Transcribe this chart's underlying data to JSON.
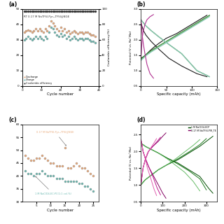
{
  "panel_a": {
    "title": "(a)",
    "xlabel": "Cycle number",
    "ylabel_right": "Coulombic efficiency(%)",
    "annotation": "RT 0.17 M NaTFSI-Pyr₁₄TFSI@NGE",
    "legend": [
      "Discharge",
      "Charge",
      "Coulombic efficiency"
    ],
    "colors_discharge": "#e8a878",
    "colors_charge": "#6ab8b0",
    "colors_ce": "#303030",
    "discharge_x": [
      1,
      2,
      3,
      4,
      5,
      6,
      7,
      8,
      9,
      10,
      11,
      12,
      13,
      14,
      15,
      16,
      17,
      18,
      19,
      20,
      21,
      22,
      23,
      24,
      25,
      26,
      27,
      28,
      29,
      30,
      31,
      32,
      33,
      34,
      35,
      36,
      37,
      38
    ],
    "discharge_y": [
      35,
      36,
      36.5,
      36,
      35,
      36,
      37,
      36,
      37,
      36,
      35,
      37,
      36,
      39,
      42,
      41,
      39,
      37,
      36,
      38,
      36,
      37,
      35,
      36,
      34,
      35,
      36,
      35,
      34,
      35,
      35,
      34,
      35,
      35,
      34,
      33,
      33,
      32
    ],
    "charge_x": [
      1,
      2,
      3,
      4,
      5,
      6,
      7,
      8,
      9,
      10,
      11,
      12,
      13,
      14,
      15,
      16,
      17,
      18,
      19,
      20,
      21,
      22,
      23,
      24,
      25,
      26,
      27,
      28,
      29,
      30,
      31,
      32,
      33,
      34,
      35,
      36,
      37,
      38
    ],
    "charge_y": [
      30,
      31,
      32,
      31,
      30,
      31,
      32,
      31,
      32,
      31,
      30,
      32,
      31,
      35,
      38,
      37,
      35,
      33,
      32,
      34,
      32,
      33,
      31,
      32,
      30,
      31,
      32,
      31,
      30,
      31,
      31,
      30,
      31,
      31,
      30,
      29,
      29,
      28
    ],
    "ce_x": [
      1,
      2,
      3,
      4,
      5,
      6,
      7,
      8,
      9,
      10,
      11,
      12,
      13,
      14,
      15,
      16,
      17,
      18,
      19,
      20,
      21,
      22,
      23,
      24,
      25,
      26,
      27,
      28,
      29,
      30,
      31,
      32,
      33,
      34,
      35,
      36,
      37,
      38
    ],
    "ce_y": [
      97,
      97,
      97,
      97,
      97,
      97,
      97,
      97,
      97,
      97,
      97,
      97,
      97,
      97,
      97,
      97,
      97,
      97,
      97,
      97,
      97,
      97,
      97,
      97,
      97,
      97,
      97,
      97,
      97,
      97,
      97,
      97,
      97,
      97,
      97,
      97,
      97,
      97
    ],
    "ylim_left": [
      0,
      50
    ],
    "ylim_right": [
      0,
      100
    ],
    "xlim": [
      0,
      40
    ],
    "yticks_left": [
      0,
      10,
      20,
      30,
      40,
      50
    ],
    "yticks_right": [
      0,
      20,
      40,
      60,
      80,
      100
    ],
    "xticks": [
      0,
      10,
      20,
      30,
      40
    ]
  },
  "panel_b": {
    "title": "(b)",
    "xlabel": "Specific capacity (mAh)",
    "ylabel": "Potential (V vs. Na⁺/Na)",
    "ylim": [
      0.5,
      3.0
    ],
    "xlim": [
      0,
      150
    ],
    "yticks": [
      0.5,
      1.0,
      1.5,
      2.0,
      2.5,
      3.0
    ],
    "xticks": [
      0,
      50,
      100,
      150
    ],
    "curves": [
      {
        "color": "#1a1a1a",
        "charge_x": [
          0,
          2,
          5,
          8,
          12,
          18,
          25,
          35,
          50,
          70,
          90,
          110,
          130
        ],
        "charge_y": [
          1.4,
          1.42,
          1.45,
          1.48,
          1.55,
          1.65,
          1.75,
          1.88,
          2.05,
          2.2,
          2.4,
          2.6,
          2.8
        ],
        "discharge_x": [
          0,
          2,
          5,
          10,
          20,
          35,
          55,
          80,
          110,
          130
        ],
        "discharge_y": [
          2.55,
          2.45,
          2.3,
          2.15,
          1.95,
          1.7,
          1.4,
          1.15,
          0.9,
          0.8
        ]
      },
      {
        "color": "#2d7a2d",
        "charge_x": [
          0,
          5,
          10,
          20,
          35,
          55,
          80,
          110,
          135
        ],
        "charge_y": [
          1.38,
          1.45,
          1.52,
          1.65,
          1.8,
          2.0,
          2.25,
          2.55,
          2.8
        ],
        "discharge_x": [
          0,
          5,
          10,
          20,
          35,
          55,
          80,
          110,
          135
        ],
        "discharge_y": [
          2.65,
          2.55,
          2.45,
          2.3,
          2.1,
          1.85,
          1.55,
          1.0,
          0.8
        ]
      },
      {
        "color": "#6ab86a",
        "charge_x": [
          0,
          5,
          10,
          20,
          35,
          55,
          80,
          110,
          135
        ],
        "charge_y": [
          1.35,
          1.42,
          1.5,
          1.62,
          1.78,
          1.98,
          2.22,
          2.52,
          2.78
        ],
        "discharge_x": [
          0,
          5,
          10,
          20,
          35,
          55,
          80,
          110,
          135
        ],
        "discharge_y": [
          2.65,
          2.55,
          2.45,
          2.3,
          2.1,
          1.85,
          1.55,
          1.0,
          0.8
        ]
      },
      {
        "color": "#90c8c0",
        "charge_x": [
          0,
          5,
          10,
          20,
          35,
          55,
          80,
          110,
          135
        ],
        "charge_y": [
          1.32,
          1.4,
          1.48,
          1.6,
          1.75,
          1.95,
          2.2,
          2.5,
          2.75
        ],
        "discharge_x": [
          0,
          5,
          10,
          20,
          35,
          55,
          80,
          110,
          135
        ],
        "discharge_y": [
          2.65,
          2.55,
          2.45,
          2.3,
          2.1,
          1.85,
          1.55,
          1.0,
          0.8
        ]
      },
      {
        "color": "#b03090",
        "charge_x": [
          0,
          1,
          2,
          3,
          5,
          8,
          12,
          18,
          25
        ],
        "charge_y": [
          1.4,
          1.6,
          1.9,
          2.1,
          2.3,
          2.5,
          2.65,
          2.75,
          2.82
        ],
        "discharge_x": [
          0,
          1,
          2,
          3,
          5,
          8,
          12,
          18,
          25
        ],
        "discharge_y": [
          2.65,
          2.5,
          2.3,
          2.1,
          1.85,
          1.55,
          1.2,
          0.9,
          0.75
        ]
      }
    ]
  },
  "panel_c": {
    "title": "(c)",
    "xlabel": "Cycle number",
    "annotation1": "0.17 M NaTFSI-Pyr₁₄TFSI@NGE",
    "annotation2": "1 M NaClO4-EC:PC(1:1 vol.%)",
    "color1": "#e8a878",
    "color2": "#6ab8b0",
    "series1_x": [
      1,
      2,
      3,
      4,
      5,
      6,
      7,
      8,
      9,
      10,
      11,
      12,
      13,
      14,
      15,
      16,
      17,
      18,
      19,
      20,
      21,
      22,
      23,
      24,
      25
    ],
    "series1_y": [
      48,
      47,
      46,
      46,
      47,
      47,
      48,
      47,
      46,
      45,
      45,
      44,
      44,
      44,
      51,
      43,
      43,
      44,
      45,
      44,
      43,
      43,
      42,
      41,
      40
    ],
    "series2_x": [
      1,
      2,
      3,
      4,
      5,
      6,
      7,
      8,
      9,
      10,
      11,
      12,
      13,
      14,
      15,
      16,
      17,
      18,
      19,
      20,
      21,
      22,
      23,
      24,
      25
    ],
    "series2_y": [
      42,
      41,
      41,
      40,
      41,
      41,
      42,
      41,
      40,
      40,
      40,
      39,
      39,
      39,
      38,
      38,
      38,
      38,
      38,
      37,
      37,
      36,
      36,
      35,
      34
    ],
    "ylim": [
      30,
      60
    ],
    "xlim": [
      0,
      27
    ],
    "xticks": [
      5,
      10,
      15,
      20,
      25
    ]
  },
  "panel_d": {
    "title": "(d)",
    "xlabel": "Specific capacity (mAh)",
    "ylabel": "Potential (V vs. Na⁺/Na)",
    "ylim": [
      0.5,
      2.8
    ],
    "xlim": [
      0,
      350
    ],
    "yticks": [
      0.5,
      1.0,
      1.5,
      2.0,
      2.5
    ],
    "xticks": [
      0,
      100,
      200,
      300
    ],
    "legend_label_green": "1 M NaClO4-ECP",
    "legend_label_pink": "0.17 M NaTFSI-PIR_TE",
    "green_shades": [
      "#004d00",
      "#1a7a1a",
      "#66bb66"
    ],
    "pink_shades": [
      "#800060",
      "#c01890",
      "#e060b0"
    ],
    "curves_green": [
      {
        "charge_x": [
          0,
          20,
          50,
          80,
          120,
          170,
          220,
          270,
          310,
          330
        ],
        "charge_y": [
          1.0,
          1.15,
          1.3,
          1.45,
          1.6,
          1.75,
          1.95,
          2.15,
          2.35,
          2.45
        ],
        "discharge_x": [
          0,
          20,
          50,
          80,
          120,
          170,
          220,
          270,
          310,
          330
        ],
        "discharge_y": [
          2.25,
          2.15,
          2.05,
          1.95,
          1.8,
          1.65,
          1.45,
          1.25,
          0.9,
          0.75
        ]
      },
      {
        "charge_x": [
          0,
          20,
          50,
          80,
          120,
          170,
          220,
          270,
          300
        ],
        "charge_y": [
          1.0,
          1.15,
          1.3,
          1.45,
          1.6,
          1.78,
          1.98,
          2.2,
          2.38
        ],
        "discharge_x": [
          0,
          20,
          50,
          80,
          120,
          170,
          220,
          270,
          300
        ],
        "discharge_y": [
          2.25,
          2.15,
          2.05,
          1.95,
          1.8,
          1.62,
          1.42,
          1.18,
          0.85
        ]
      },
      {
        "charge_x": [
          0,
          20,
          50,
          80,
          120,
          160,
          200,
          240,
          270
        ],
        "charge_y": [
          1.0,
          1.15,
          1.3,
          1.45,
          1.6,
          1.78,
          1.98,
          2.18,
          2.35
        ],
        "discharge_x": [
          0,
          20,
          50,
          80,
          120,
          160,
          200,
          240,
          270
        ],
        "discharge_y": [
          2.25,
          2.15,
          2.05,
          1.95,
          1.78,
          1.58,
          1.38,
          1.1,
          0.82
        ]
      }
    ],
    "curves_pink": [
      {
        "charge_x": [
          0,
          5,
          10,
          20,
          35,
          55,
          80,
          100,
          115
        ],
        "charge_y": [
          1.0,
          1.25,
          1.5,
          1.75,
          2.0,
          2.15,
          2.3,
          2.45,
          2.55
        ],
        "discharge_x": [
          0,
          5,
          10,
          20,
          35,
          55,
          80,
          100,
          115
        ],
        "discharge_y": [
          2.35,
          2.2,
          2.0,
          1.8,
          1.55,
          1.3,
          1.0,
          0.75,
          0.6
        ]
      },
      {
        "charge_x": [
          0,
          5,
          10,
          20,
          35,
          55,
          75,
          90
        ],
        "charge_y": [
          1.0,
          1.25,
          1.5,
          1.75,
          2.0,
          2.15,
          2.3,
          2.42
        ],
        "discharge_x": [
          0,
          5,
          10,
          20,
          35,
          55,
          75,
          90
        ],
        "discharge_y": [
          2.35,
          2.2,
          2.0,
          1.8,
          1.55,
          1.25,
          0.9,
          0.7
        ]
      },
      {
        "charge_x": [
          0,
          5,
          10,
          20,
          30,
          45,
          60,
          72
        ],
        "charge_y": [
          1.0,
          1.25,
          1.5,
          1.75,
          1.95,
          2.1,
          2.25,
          2.38
        ],
        "discharge_x": [
          0,
          5,
          10,
          20,
          30,
          45,
          60,
          72
        ],
        "discharge_y": [
          2.35,
          2.2,
          2.0,
          1.78,
          1.5,
          1.2,
          0.88,
          0.68
        ]
      }
    ]
  },
  "bg": "#ffffff"
}
